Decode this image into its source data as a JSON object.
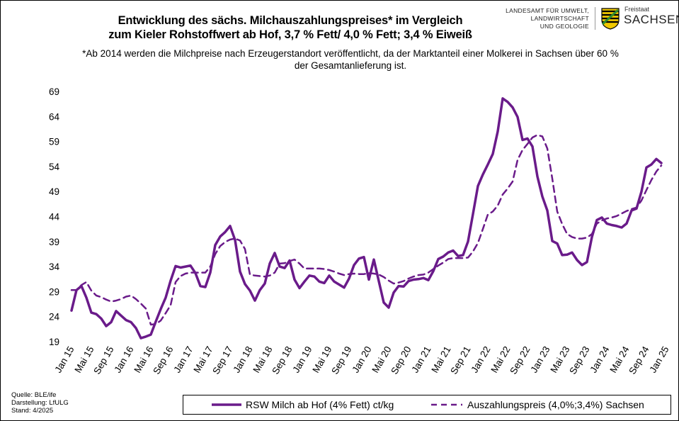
{
  "header": {
    "title_line1": "Entwicklung des sächs. Milchauszahlungspreises* im Vergleich",
    "title_line2": "zum Kieler Rohstoffwert ab Hof, 3,7 % Fett/ 4,0 % Fett; 3,4 % Eiweiß",
    "note_line1": "*Ab 2014 werden die Milchpreise nach Erzeugerstandort veröffentlicht, da der Marktanteil  einer Molkerei in Sachsen über 60 %",
    "note_line2": "der Gesamtanlieferung ist."
  },
  "logo": {
    "agency_line1": "LANDESAMT FÜR UMWELT,",
    "agency_line2": "LANDWIRTSCHAFT",
    "agency_line3": "UND GEOLOGIE",
    "state_small": "Freistaat",
    "state_big": "SACHSEN",
    "crest_colors": [
      "#000000",
      "#f0c800",
      "#2e8b2e"
    ]
  },
  "footer": {
    "source": "Quelle:  BLE/ife",
    "produced": "Darstellung:  LfULG",
    "status": "Stand:  4/2025"
  },
  "legend": {
    "series1_label": "RSW Milch  ab Hof (4% Fett) ct/kg",
    "series2_label": "Auszahlungspreis (4,0%;3,4%)  Sachsen"
  },
  "chart_data": {
    "type": "line",
    "x_tick_labels": [
      "Jan 15",
      "Mai 15",
      "Sep 15",
      "Jan 16",
      "Mai 16",
      "Sep 16",
      "Jan 17",
      "Mai 17",
      "Sep 17",
      "Jan 18",
      "Mai 18",
      "Sep 18",
      "Jan 19",
      "Mai 19",
      "Sep 19",
      "Jan 20",
      "Mai 20",
      "Sep 20",
      "Jan 21",
      "Mai 21",
      "Sep 21",
      "Jan 22",
      "Mai 22",
      "Sep 22",
      "Jan 23",
      "Mai 23",
      "Sep 23",
      "Jan 24",
      "Mai 24",
      "Sep 24",
      "Jan 25"
    ],
    "x_tick_step_months": 4,
    "ylim": [
      19,
      69
    ],
    "y_ticks": [
      19,
      24,
      29,
      34,
      39,
      44,
      49,
      54,
      59,
      64,
      69
    ],
    "grid": false,
    "legend_position": "bottom",
    "color": "#6a1b8a",
    "series": [
      {
        "name": "RSW Milch  ab Hof (4% Fett) ct/kg",
        "style": "solid",
        "values": [
          25.2,
          29.3,
          30.1,
          27.8,
          24.8,
          24.5,
          23.6,
          22.1,
          22.9,
          25.1,
          24.2,
          23.3,
          22.9,
          21.7,
          19.7,
          20.0,
          20.4,
          23.0,
          25.5,
          27.8,
          31.2,
          34.1,
          33.8,
          34.0,
          34.2,
          32.7,
          30.1,
          29.9,
          32.8,
          38.3,
          40.0,
          40.9,
          42.1,
          39.3,
          33.0,
          30.5,
          29.2,
          27.2,
          29.3,
          30.6,
          34.6,
          36.7,
          34.0,
          33.7,
          35.2,
          31.4,
          29.7,
          31.0,
          32.2,
          32.0,
          31.0,
          30.7,
          32.2,
          31.0,
          30.4,
          29.8,
          31.6,
          34.3,
          35.6,
          35.9,
          31.4,
          35.4,
          31.1,
          26.8,
          25.8,
          28.8,
          30.1,
          30.0,
          31.1,
          31.4,
          31.5,
          31.7,
          31.3,
          33.1,
          35.5,
          36.0,
          36.8,
          37.2,
          36.1,
          36.3,
          39.0,
          44.5,
          50.1,
          52.4,
          54.4,
          56.5,
          61.0,
          67.6,
          66.9,
          65.8,
          63.9,
          59.3,
          59.6,
          58.0,
          52.0,
          48.0,
          45.2,
          39.1,
          38.6,
          36.3,
          36.4,
          36.8,
          35.3,
          34.3,
          34.9,
          39.9,
          43.3,
          43.8,
          42.6,
          42.3,
          42.1,
          41.8,
          42.6,
          45.2,
          45.6,
          49.0,
          53.8,
          54.4,
          55.5,
          54.7
        ]
      },
      {
        "name": "Auszahlungspreis (4,0%;3,4%)  Sachsen",
        "style": "dashed",
        "values": [
          29.3,
          29.3,
          30.3,
          30.9,
          29.2,
          28.2,
          27.9,
          27.4,
          27.0,
          27.2,
          27.5,
          28.0,
          28.2,
          27.5,
          26.6,
          25.6,
          22.4,
          22.5,
          23.2,
          24.7,
          26.3,
          30.9,
          32.1,
          32.6,
          32.8,
          32.8,
          32.8,
          32.8,
          34.0,
          36.5,
          38.1,
          38.9,
          39.4,
          39.6,
          39.2,
          37.5,
          32.4,
          32.2,
          32.1,
          32.0,
          32.2,
          32.8,
          34.6,
          34.7,
          35.1,
          35.4,
          34.6,
          33.6,
          33.6,
          33.6,
          33.6,
          33.5,
          33.3,
          33.0,
          32.6,
          32.3,
          32.5,
          32.6,
          32.5,
          32.5,
          32.7,
          32.6,
          32.4,
          31.9,
          31.2,
          30.6,
          30.8,
          31.1,
          31.6,
          32.0,
          32.3,
          32.4,
          32.8,
          33.5,
          34.2,
          34.8,
          35.5,
          35.7,
          35.7,
          35.7,
          35.8,
          37.0,
          38.7,
          41.5,
          44.4,
          45.0,
          46.2,
          48.4,
          49.6,
          51.0,
          55.3,
          57.3,
          58.5,
          59.8,
          60.3,
          60.0,
          57.6,
          51.6,
          45.0,
          42.5,
          40.5,
          39.9,
          39.6,
          39.6,
          39.8,
          40.5,
          42.6,
          43.2,
          43.6,
          43.8,
          44.1,
          44.6,
          45.1,
          45.5,
          45.8,
          47.2,
          49.3,
          51.3,
          53.0,
          54.2
        ]
      }
    ]
  }
}
